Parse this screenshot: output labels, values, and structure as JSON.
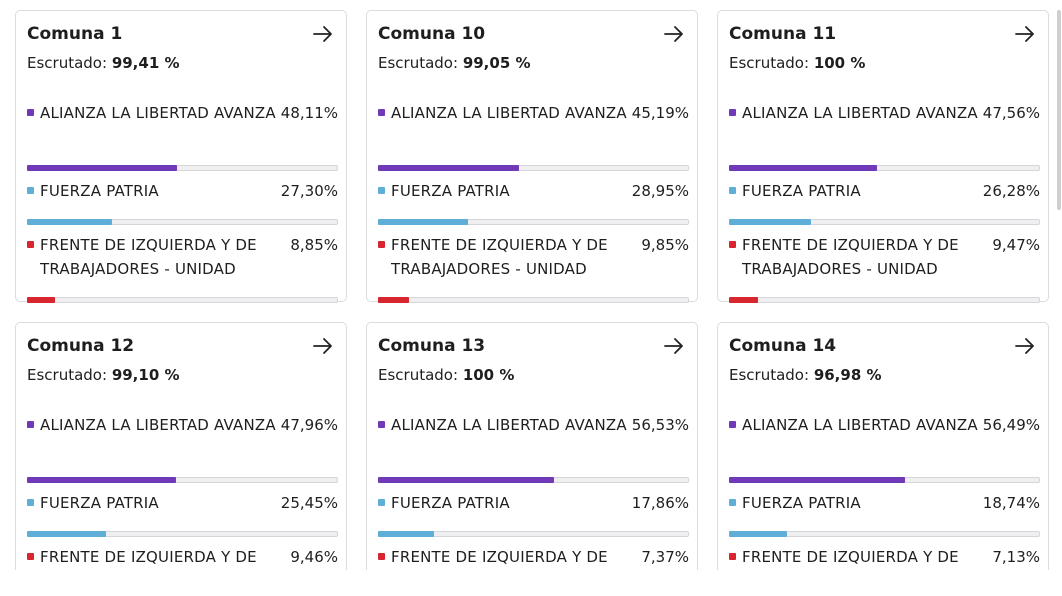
{
  "colors": {
    "lla": "#6f39b7",
    "fp": "#5eaed8",
    "fit": "#d7262e"
  },
  "icons": {
    "card_link": "arrow-right-icon"
  },
  "labels": {
    "escrutado": "Escrutado:"
  },
  "cards": [
    {
      "title": "Comuna 1",
      "escrutado": "99,41 %",
      "parties": [
        {
          "key": "lla",
          "name": "ALIANZA LA LIBERTAD AVANZA",
          "pct": "48,11%",
          "value": 48.11
        },
        {
          "key": "fp",
          "name": "FUERZA PATRIA",
          "pct": "27,30%",
          "value": 27.3
        },
        {
          "key": "fit",
          "name": "FRENTE DE IZQUIERDA Y DE TRABAJADORES - UNIDAD",
          "pct": "8,85%",
          "value": 8.85
        }
      ]
    },
    {
      "title": "Comuna 10",
      "escrutado": "99,05 %",
      "parties": [
        {
          "key": "lla",
          "name": "ALIANZA LA LIBERTAD AVANZA",
          "pct": "45,19%",
          "value": 45.19
        },
        {
          "key": "fp",
          "name": "FUERZA PATRIA",
          "pct": "28,95%",
          "value": 28.95
        },
        {
          "key": "fit",
          "name": "FRENTE DE IZQUIERDA Y DE TRABAJADORES - UNIDAD",
          "pct": "9,85%",
          "value": 9.85
        }
      ]
    },
    {
      "title": "Comuna 11",
      "escrutado": "100 %",
      "parties": [
        {
          "key": "lla",
          "name": "ALIANZA LA LIBERTAD AVANZA",
          "pct": "47,56%",
          "value": 47.56
        },
        {
          "key": "fp",
          "name": "FUERZA PATRIA",
          "pct": "26,28%",
          "value": 26.28
        },
        {
          "key": "fit",
          "name": "FRENTE DE IZQUIERDA Y DE TRABAJADORES - UNIDAD",
          "pct": "9,47%",
          "value": 9.47
        }
      ]
    },
    {
      "title": "Comuna 12",
      "escrutado": "99,10 %",
      "parties": [
        {
          "key": "lla",
          "name": "ALIANZA LA LIBERTAD AVANZA",
          "pct": "47,96%",
          "value": 47.96
        },
        {
          "key": "fp",
          "name": "FUERZA PATRIA",
          "pct": "25,45%",
          "value": 25.45
        },
        {
          "key": "fit",
          "name": "FRENTE DE IZQUIERDA Y DE",
          "pct": "9,46%",
          "value": 9.46
        }
      ]
    },
    {
      "title": "Comuna 13",
      "escrutado": "100 %",
      "parties": [
        {
          "key": "lla",
          "name": "ALIANZA LA LIBERTAD AVANZA",
          "pct": "56,53%",
          "value": 56.53
        },
        {
          "key": "fp",
          "name": "FUERZA PATRIA",
          "pct": "17,86%",
          "value": 17.86
        },
        {
          "key": "fit",
          "name": "FRENTE DE IZQUIERDA Y DE",
          "pct": "7,37%",
          "value": 7.37
        }
      ]
    },
    {
      "title": "Comuna 14",
      "escrutado": "96,98 %",
      "parties": [
        {
          "key": "lla",
          "name": "ALIANZA LA LIBERTAD AVANZA",
          "pct": "56,49%",
          "value": 56.49
        },
        {
          "key": "fp",
          "name": "FUERZA PATRIA",
          "pct": "18,74%",
          "value": 18.74
        },
        {
          "key": "fit",
          "name": "FRENTE DE IZQUIERDA Y DE",
          "pct": "7,13%",
          "value": 7.13
        }
      ]
    }
  ]
}
